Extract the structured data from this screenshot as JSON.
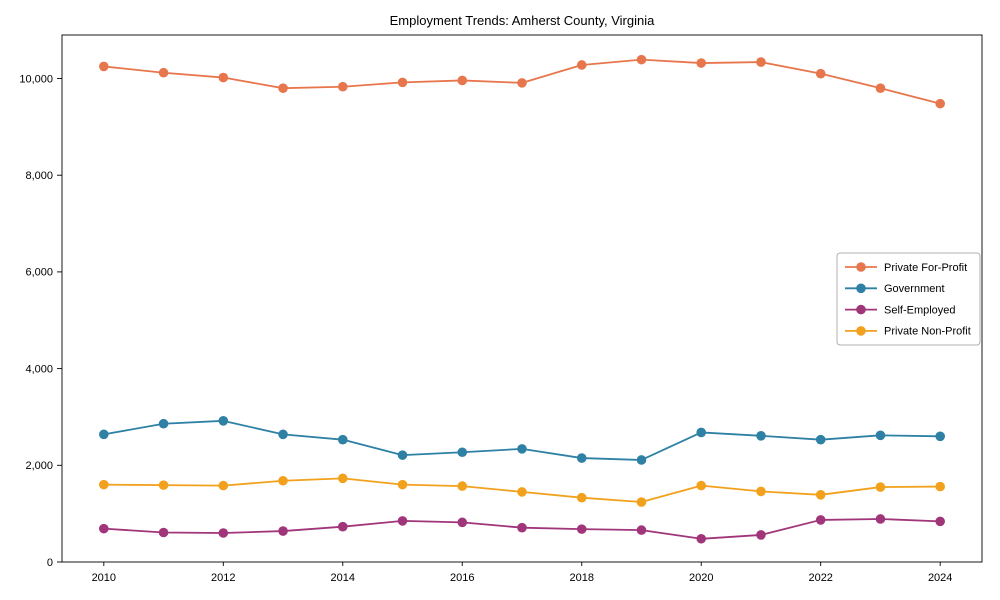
{
  "title": "Employment Trends: Amherst County, Virginia",
  "chart_data": {
    "type": "line",
    "title": "Employment Trends: Amherst County, Virginia",
    "xlabel": "",
    "ylabel": "",
    "x": [
      2010,
      2011,
      2012,
      2013,
      2014,
      2015,
      2016,
      2017,
      2018,
      2019,
      2020,
      2021,
      2022,
      2023,
      2024
    ],
    "series": [
      {
        "name": "Private For-Profit",
        "color": "#e8764c",
        "values": [
          10250,
          10120,
          10020,
          9800,
          9830,
          9920,
          9960,
          9910,
          10280,
          10390,
          10320,
          10340,
          10100,
          9800,
          9480
        ]
      },
      {
        "name": "Government",
        "color": "#2e80a4",
        "values": [
          2640,
          2860,
          2920,
          2640,
          2530,
          2210,
          2270,
          2340,
          2150,
          2110,
          2680,
          2610,
          2530,
          2620,
          2600
        ]
      },
      {
        "name": "Self-Employed",
        "color": "#a1357a",
        "values": [
          690,
          610,
          600,
          640,
          730,
          850,
          820,
          710,
          680,
          660,
          480,
          560,
          870,
          890,
          840
        ]
      },
      {
        "name": "Private Non-Profit",
        "color": "#f2a11c",
        "values": [
          1600,
          1590,
          1580,
          1680,
          1730,
          1600,
          1570,
          1450,
          1330,
          1240,
          1580,
          1460,
          1390,
          1550,
          1560
        ]
      }
    ],
    "xticks": [
      2010,
      2012,
      2014,
      2016,
      2018,
      2020,
      2022,
      2024
    ],
    "yticks": [
      0,
      2000,
      4000,
      6000,
      8000,
      10000
    ],
    "ytick_labels": [
      "0",
      "2,000",
      "4,000",
      "6,000",
      "8,000",
      "10,000"
    ],
    "xlim": [
      2009.3,
      2024.7
    ],
    "ylim": [
      0,
      10900
    ],
    "grid": false,
    "legend_position": "center right",
    "axis_color": "#000000",
    "legend_border_color": "#b0b0b0"
  }
}
